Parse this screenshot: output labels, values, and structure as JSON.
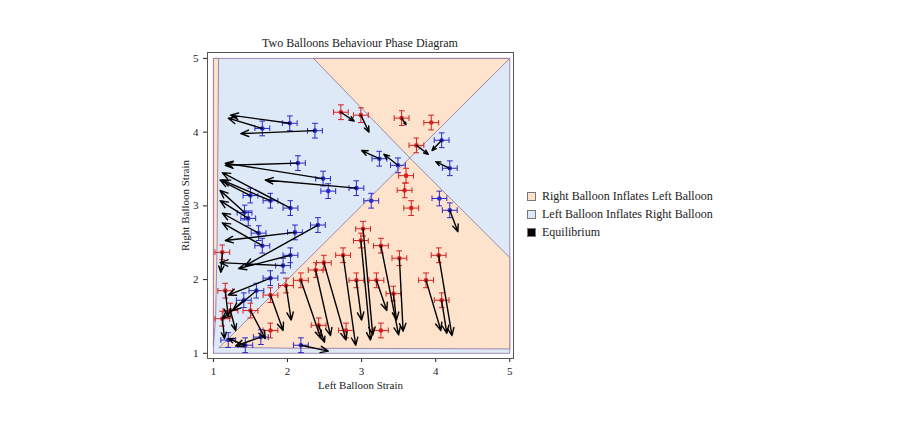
{
  "chart_data": {
    "type": "scatter",
    "title": "Two Balloons Behaviour Phase Diagram",
    "x_label": "Left Balloon Strain",
    "y_label": "Right Balloon Strain",
    "xlim": [
      0.92,
      5.05
    ],
    "ylim": [
      0.93,
      5.08
    ],
    "xticks": [
      1,
      2,
      3,
      4,
      5
    ],
    "yticks": [
      1,
      2,
      3,
      4,
      5
    ],
    "grid": false,
    "legend": "right",
    "legend_entries": [
      {
        "name": "Right Balloon Inflates Left Balloon",
        "color": "#fde3cc"
      },
      {
        "name": "Left Balloon Inflates Right Balloon",
        "color": "#dde9f7"
      },
      {
        "name": "Equilibrium",
        "color": "#000000"
      }
    ],
    "regions": [
      {
        "color": "#dde9f7",
        "polygons": [
          [
            [
              1,
              1
            ],
            [
              5,
              1
            ],
            [
              5,
              5
            ],
            [
              1,
              5
            ]
          ]
        ]
      },
      {
        "color": "#fde3cc",
        "polygons": [
          [
            [
              1.08,
              1.08
            ],
            [
              3.65,
              3.65
            ],
            [
              5,
              2.3
            ],
            [
              5,
              1.06
            ],
            [
              2,
              1.07
            ],
            [
              1.3,
              1.08
            ]
          ],
          [
            [
              2.35,
              5
            ],
            [
              3.65,
              3.65
            ],
            [
              5,
              5
            ]
          ],
          [
            [
              1,
              1.1
            ],
            [
              1.03,
              1.5
            ],
            [
              1.05,
              2.5
            ],
            [
              1.07,
              5
            ],
            [
              1,
              5
            ]
          ]
        ]
      }
    ],
    "series": [
      {
        "color": "#2a2ac8",
        "marker": "circle",
        "xerr": 0.1,
        "yerr": 0.1,
        "x": [
          1.66,
          2.03,
          2.37,
          2.48,
          2.14,
          2.93,
          2.04,
          1.77,
          1.5,
          1.42,
          1.47,
          1.61,
          1.66,
          2.1,
          2.41,
          2.04,
          1.94,
          1.77,
          1.58,
          1.41,
          1.2,
          1.43,
          2.18,
          1.64,
          3.24,
          3.49,
          3.13,
          4.08,
          4.19,
          4.19,
          4.05,
          2.55
        ],
        "y": [
          4.05,
          4.12,
          4.02,
          3.37,
          3.58,
          3.24,
          2.97,
          3.07,
          3.14,
          2.91,
          2.83,
          2.63,
          2.46,
          2.64,
          2.74,
          2.33,
          2.19,
          2.02,
          1.85,
          1.72,
          1.18,
          1.11,
          1.11,
          1.22,
          3.64,
          3.55,
          3.07,
          3.89,
          3.51,
          2.94,
          3.1,
          3.2
        ],
        "arrow_x": [
          1.2,
          1.23,
          1.37,
          1.16,
          1.16,
          1.7,
          1.12,
          1.12,
          1.09,
          1.09,
          1.09,
          1.12,
          1.12,
          1.16,
          1.43,
          1.34,
          1.09,
          1.2,
          1.26,
          1.12,
          null,
          1.2,
          2.55,
          1.3,
          3.0,
          3.3,
          null,
          3.95,
          4.0,
          4.3,
          null,
          null
        ],
        "arrow_y": [
          4.19,
          4.23,
          3.98,
          3.58,
          3.55,
          3.35,
          3.45,
          3.35,
          3.35,
          3.21,
          3.07,
          2.9,
          2.77,
          2.53,
          2.19,
          2.15,
          2.23,
          1.79,
          1.58,
          1.47,
          null,
          1.2,
          1.03,
          1.1,
          3.75,
          3.7,
          null,
          3.75,
          3.6,
          2.65,
          null,
          null
        ]
      },
      {
        "color": "#d62020",
        "marker": "circle",
        "xerr": 0.1,
        "yerr": 0.1,
        "x": [
          2.72,
          2.99,
          3.54,
          3.94,
          3.74,
          3.6,
          3.58,
          3.67,
          3.02,
          3.26,
          3.51,
          2.99,
          2.75,
          2.49,
          2.38,
          2.18,
          2.93,
          3.2,
          3.43,
          4.04,
          3.87,
          4.08,
          1.98,
          1.77,
          1.5,
          1.23,
          1.12,
          1.16,
          1.77,
          2.42,
          2.79,
          3.26,
          1.12
        ],
        "y": [
          4.27,
          4.23,
          4.19,
          4.13,
          3.82,
          3.41,
          3.21,
          2.97,
          2.69,
          2.46,
          2.29,
          2.53,
          2.33,
          2.23,
          2.13,
          1.99,
          1.99,
          1.99,
          1.81,
          2.33,
          1.99,
          1.72,
          1.92,
          1.79,
          1.58,
          1.58,
          1.47,
          1.85,
          1.31,
          1.38,
          1.31,
          1.31,
          2.37
        ],
        "arrow_x": [
          2.9,
          3.1,
          3.6,
          null,
          3.9,
          null,
          null,
          null,
          3.15,
          3.5,
          3.56,
          3.12,
          2.92,
          2.79,
          2.58,
          2.45,
          3.0,
          3.34,
          3.47,
          4.22,
          4.07,
          4.15,
          2.05,
          1.94,
          1.7,
          1.3,
          1.15,
          1.2,
          null,
          2.5,
          null,
          null,
          1.1
        ],
        "arrow_y": [
          4.15,
          4.0,
          4.1,
          null,
          3.7,
          null,
          null,
          null,
          1.25,
          1.25,
          1.3,
          1.18,
          1.11,
          1.18,
          1.24,
          1.2,
          1.45,
          1.58,
          1.45,
          1.24,
          1.31,
          1.27,
          1.45,
          1.31,
          1.2,
          1.31,
          1.2,
          1.5,
          null,
          1.15,
          null,
          null,
          2.1
        ]
      }
    ]
  }
}
